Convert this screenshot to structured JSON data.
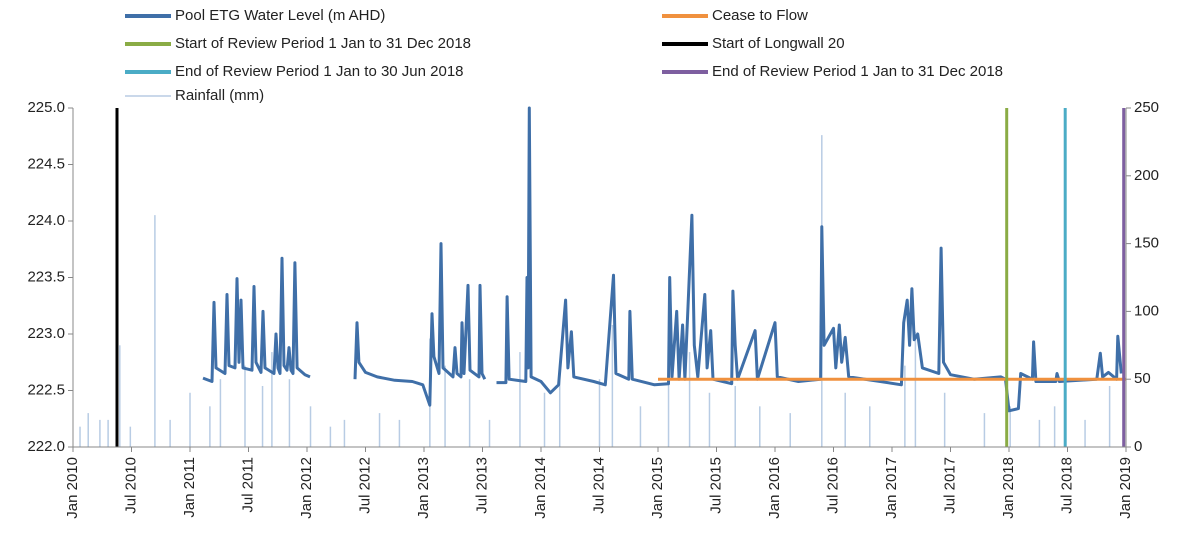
{
  "chart_data": {
    "type": "line",
    "xlim": [
      2010,
      2019
    ],
    "xticks": [
      {
        "value": 2010,
        "label": "Jan 2010"
      },
      {
        "value": 2010.5,
        "label": "Jul 2010"
      },
      {
        "value": 2011,
        "label": "Jan 2011"
      },
      {
        "value": 2011.5,
        "label": "Jul 2011"
      },
      {
        "value": 2012,
        "label": "Jan 2012"
      },
      {
        "value": 2012.5,
        "label": "Jul 2012"
      },
      {
        "value": 2013,
        "label": "Jan 2013"
      },
      {
        "value": 2013.5,
        "label": "Jul 2013"
      },
      {
        "value": 2014,
        "label": "Jan 2014"
      },
      {
        "value": 2014.5,
        "label": "Jul 2014"
      },
      {
        "value": 2015,
        "label": "Jan 2015"
      },
      {
        "value": 2015.5,
        "label": "Jul 2015"
      },
      {
        "value": 2016,
        "label": "Jan 2016"
      },
      {
        "value": 2016.5,
        "label": "Jul 2016"
      },
      {
        "value": 2017,
        "label": "Jan 2017"
      },
      {
        "value": 2017.5,
        "label": "Jul 2017"
      },
      {
        "value": 2018,
        "label": "Jan 2018"
      },
      {
        "value": 2018.5,
        "label": "Jul 2018"
      },
      {
        "value": 2019,
        "label": "Jan 2019"
      }
    ],
    "ylim": [
      222,
      225
    ],
    "yticks": [
      {
        "value": 222,
        "label": "222.0"
      },
      {
        "value": 222.5,
        "label": "222.5"
      },
      {
        "value": 223,
        "label": "223.0"
      },
      {
        "value": 223.5,
        "label": "223.5"
      },
      {
        "value": 224,
        "label": "224.0"
      },
      {
        "value": 224.5,
        "label": "224.5"
      },
      {
        "value": 225,
        "label": "225.0"
      }
    ],
    "y2lim": [
      0,
      250
    ],
    "y2ticks": [
      0,
      50,
      100,
      150,
      200,
      250
    ],
    "series": [
      {
        "name": "Pool ETG Water Level (m AHD)",
        "color": "#3f6fa8",
        "x": [
          2011.111,
          2011.188,
          2011.205,
          2011.222,
          2011.299,
          2011.316,
          2011.333,
          2011.385,
          2011.402,
          2011.419,
          2011.436,
          2011.453,
          2011.53,
          2011.547,
          2011.564,
          2011.607,
          2011.624,
          2011.641,
          2011.718,
          2011.735,
          2011.752,
          2011.769,
          2011.786,
          2011.803,
          2011.829,
          2011.846,
          2011.863,
          2011.88,
          2011.897,
          2011.915,
          2011.983,
          2012.026,
          2012.2,
          2012.41,
          2012.427,
          2012.444,
          2012.5,
          2012.6,
          2012.75,
          2012.9,
          2012.99,
          2013.05,
          2013.068,
          2013.085,
          2013.128,
          2013.145,
          2013.162,
          2013.248,
          2013.265,
          2013.282,
          2013.316,
          2013.325,
          2013.342,
          2013.376,
          2013.393,
          2013.47,
          2013.479,
          2013.496,
          2013.52,
          2013.57,
          2013.62,
          2013.7,
          2013.71,
          2013.727,
          2013.87,
          2013.88,
          2013.89,
          2013.9,
          2013.915,
          2014.0,
          2014.08,
          2014.15,
          2014.21,
          2014.23,
          2014.26,
          2014.28,
          2014.45,
          2014.55,
          2014.62,
          2014.64,
          2014.75,
          2014.76,
          2014.78,
          2014.97,
          2015.09,
          2015.1,
          2015.12,
          2015.16,
          2015.18,
          2015.21,
          2015.23,
          2015.29,
          2015.31,
          2015.34,
          2015.4,
          2015.42,
          2015.45,
          2015.47,
          2015.63,
          2015.64,
          2015.66,
          2015.68,
          2015.83,
          2015.85,
          2016.0,
          2016.02,
          2016.2,
          2016.39,
          2016.4,
          2016.42,
          2016.5,
          2016.52,
          2016.55,
          2016.57,
          2016.6,
          2016.63,
          2016.9,
          2017.08,
          2017.1,
          2017.13,
          2017.15,
          2017.17,
          2017.19,
          2017.22,
          2017.26,
          2017.4,
          2017.42,
          2017.44,
          2017.5,
          2017.7,
          2017.93,
          2017.97,
          2018.0,
          2018.08,
          2018.1,
          2018.2,
          2018.21,
          2018.23,
          2018.4,
          2018.41,
          2018.43,
          2018.75,
          2018.78,
          2018.8,
          2018.85,
          2018.92,
          2018.93,
          2018.96
        ],
        "values": [
          222.61,
          222.58,
          223.28,
          222.7,
          222.65,
          223.35,
          222.72,
          222.7,
          223.49,
          222.75,
          223.3,
          222.7,
          222.68,
          223.42,
          222.75,
          222.66,
          223.2,
          222.7,
          222.65,
          223.0,
          222.7,
          222.65,
          223.67,
          222.72,
          222.68,
          222.88,
          222.68,
          222.65,
          223.63,
          222.7,
          222.64,
          222.62,
          null,
          222.6,
          223.1,
          222.75,
          222.66,
          222.62,
          222.59,
          222.58,
          222.55,
          222.37,
          223.18,
          222.8,
          222.65,
          223.8,
          222.7,
          222.62,
          222.88,
          222.65,
          222.62,
          223.1,
          222.65,
          223.43,
          222.68,
          222.62,
          223.43,
          222.65,
          222.6,
          null,
          222.57,
          222.57,
          223.33,
          222.6,
          222.58,
          223.5,
          222.7,
          225.0,
          222.62,
          222.58,
          222.48,
          222.55,
          223.3,
          222.7,
          223.02,
          222.62,
          222.58,
          222.55,
          223.52,
          222.65,
          222.6,
          223.2,
          222.6,
          222.55,
          222.56,
          223.5,
          222.62,
          223.2,
          222.6,
          223.08,
          222.6,
          224.05,
          222.9,
          222.62,
          223.35,
          222.7,
          223.03,
          222.6,
          222.56,
          223.38,
          222.9,
          222.6,
          223.03,
          222.6,
          223.1,
          222.62,
          222.58,
          222.6,
          223.95,
          222.9,
          223.05,
          222.7,
          223.08,
          222.75,
          222.97,
          222.62,
          222.58,
          222.55,
          223.1,
          223.3,
          222.9,
          223.4,
          222.95,
          223.0,
          222.7,
          222.65,
          223.76,
          222.75,
          222.64,
          222.6,
          222.62,
          222.6,
          222.32,
          222.34,
          222.65,
          222.6,
          222.93,
          222.58,
          222.58,
          222.65,
          222.58,
          222.6,
          222.83,
          222.62,
          222.66,
          222.6,
          222.98,
          222.65
        ]
      },
      {
        "name": "Cease to Flow",
        "color": "#f0913e",
        "x": [
          2015,
          2019
        ],
        "values": [
          222.6,
          222.6
        ]
      },
      {
        "name": "Start of Review Period 1 Jan to 31 Dec 2018",
        "color": "#8aac45",
        "x": [
          2017.98,
          2017.98
        ],
        "values": [
          222,
          225
        ]
      },
      {
        "name": "Start of Longwall 20",
        "color": "#000000",
        "x": [
          2010.376,
          2010.376
        ],
        "values": [
          222,
          225
        ]
      },
      {
        "name": "End of Review Period 1 Jan to 30 Jun 2018",
        "color": "#4bacc6",
        "x": [
          2018.48,
          2018.48
        ],
        "values": [
          222,
          225
        ]
      },
      {
        "name": "End of Review Period 1 Jan to 31 Dec 2018",
        "color": "#7e5fa0",
        "x": [
          2018.98,
          2018.98
        ],
        "values": [
          222,
          225
        ]
      },
      {
        "name": "Rainfall (mm)",
        "color": "#b8cce4",
        "axis": "y2",
        "x": [
          2010.06,
          2010.13,
          2010.23,
          2010.3,
          2010.4,
          2010.49,
          2010.7,
          2010.83,
          2011.0,
          2011.17,
          2011.26,
          2011.47,
          2011.62,
          2011.7,
          2011.85,
          2012.03,
          2012.2,
          2012.32,
          2012.62,
          2012.79,
          2013.05,
          2013.18,
          2013.39,
          2013.56,
          2013.82,
          2014.03,
          2014.16,
          2014.5,
          2014.61,
          2014.85,
          2015.09,
          2015.27,
          2015.44,
          2015.66,
          2015.87,
          2016.13,
          2016.4,
          2016.6,
          2016.81,
          2017.11,
          2017.2,
          2017.45,
          2017.79,
          2018.01,
          2018.26,
          2018.39,
          2018.65,
          2018.86
        ],
        "values": [
          15,
          25,
          20,
          20,
          75,
          15,
          171,
          20,
          40,
          30,
          50,
          60,
          45,
          70,
          50,
          30,
          15,
          20,
          25,
          20,
          80,
          60,
          50,
          20,
          70,
          40,
          60,
          50,
          90,
          30,
          60,
          70,
          40,
          45,
          30,
          25,
          230,
          40,
          30,
          60,
          85,
          40,
          25,
          30,
          20,
          30,
          20,
          45
        ]
      }
    ]
  }
}
